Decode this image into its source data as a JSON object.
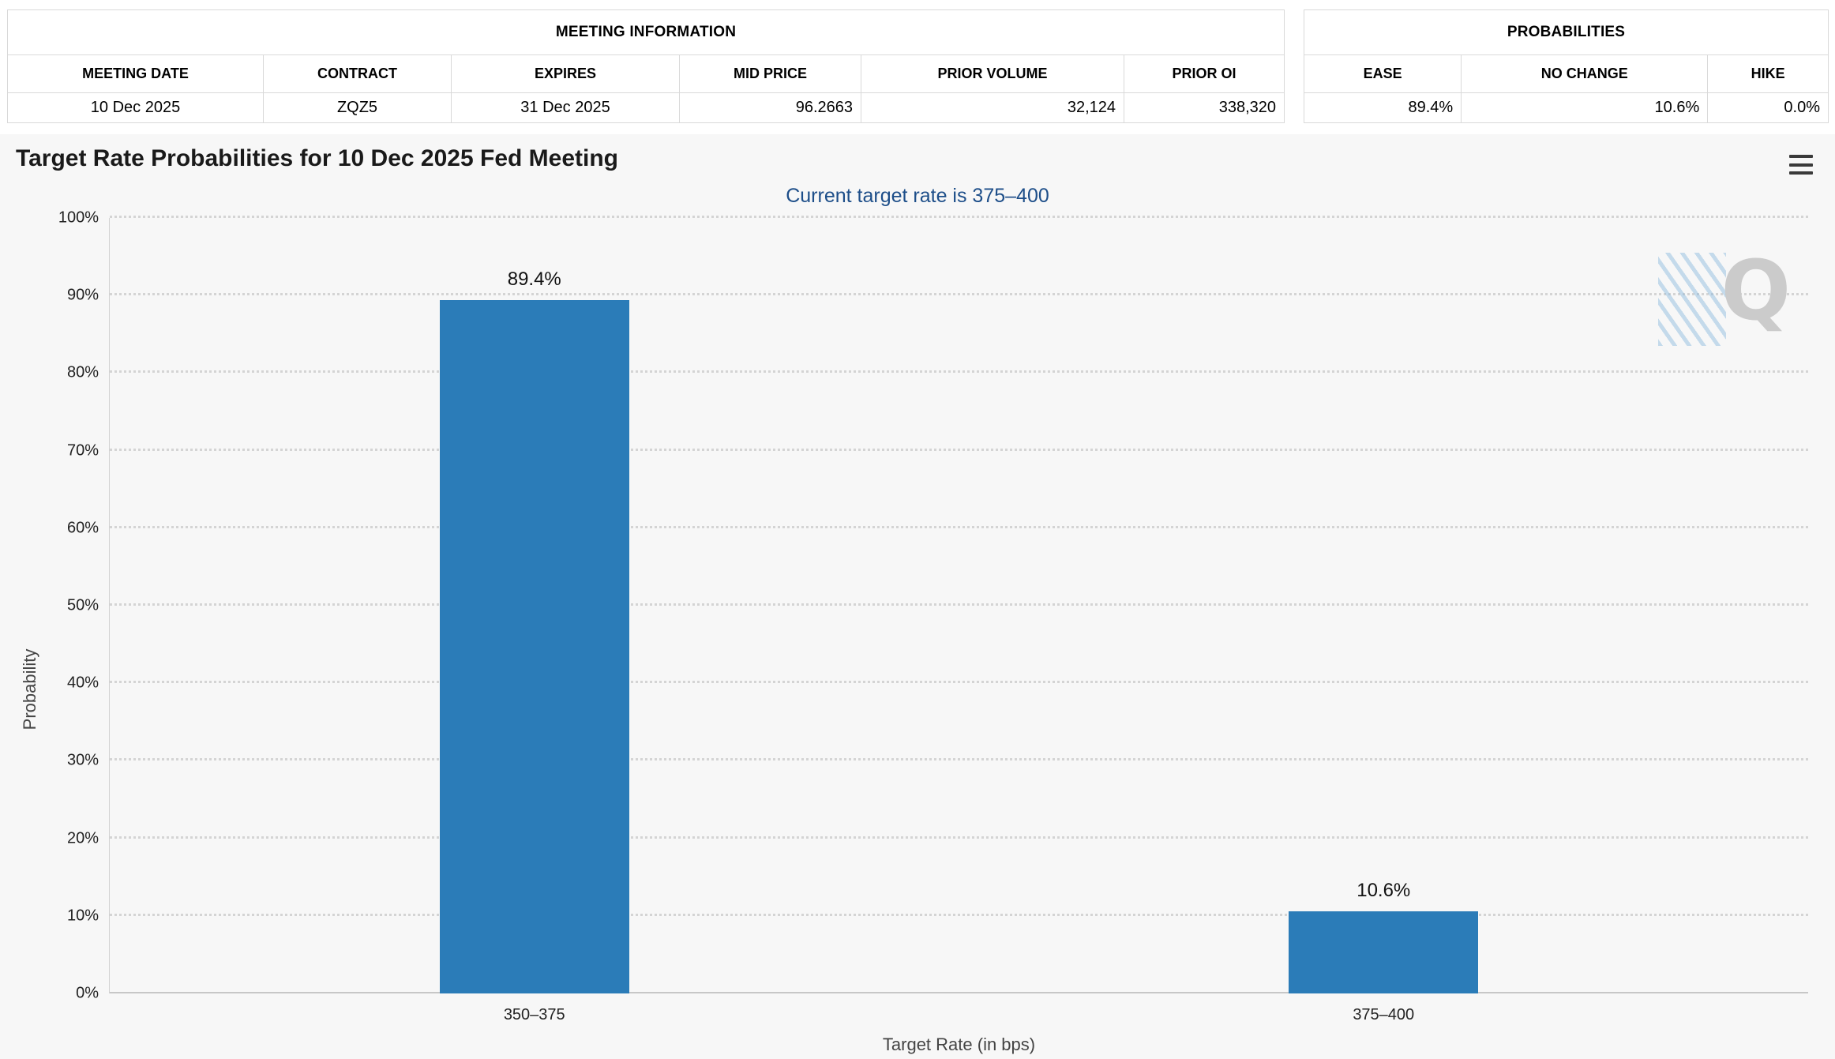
{
  "meeting_information": {
    "title": "MEETING INFORMATION",
    "columns": [
      "MEETING DATE",
      "CONTRACT",
      "EXPIRES",
      "MID PRICE",
      "PRIOR VOLUME",
      "PRIOR OI"
    ],
    "values": [
      "10 Dec 2025",
      "ZQZ5",
      "31 Dec 2025",
      "96.2663",
      "32,124",
      "338,320"
    ]
  },
  "probabilities": {
    "title": "PROBABILITIES",
    "columns": [
      "EASE",
      "NO CHANGE",
      "HIKE"
    ],
    "values": [
      "89.4%",
      "10.6%",
      "0.0%"
    ]
  },
  "chart_data": {
    "type": "bar",
    "title": "Target Rate Probabilities for 10 Dec 2025 Fed Meeting",
    "subtitle": "Current target rate is 375–400",
    "categories": [
      "350–375",
      "375–400"
    ],
    "values": [
      89.4,
      10.6
    ],
    "value_labels": [
      "89.4%",
      "10.6%"
    ],
    "xlabel": "Target Rate (in bps)",
    "ylabel": "Probability",
    "ylim": [
      0,
      100
    ],
    "ytick_step": 10,
    "ytick_suffix": "%",
    "grid": true,
    "legend": "none",
    "bar_color": "#2b7cb8",
    "subtitle_color": "#1d4e89",
    "plot_background": "#f7f7f7"
  },
  "icons": {
    "context_menu": "hamburger-menu-icon",
    "watermark_letter": "Q"
  }
}
